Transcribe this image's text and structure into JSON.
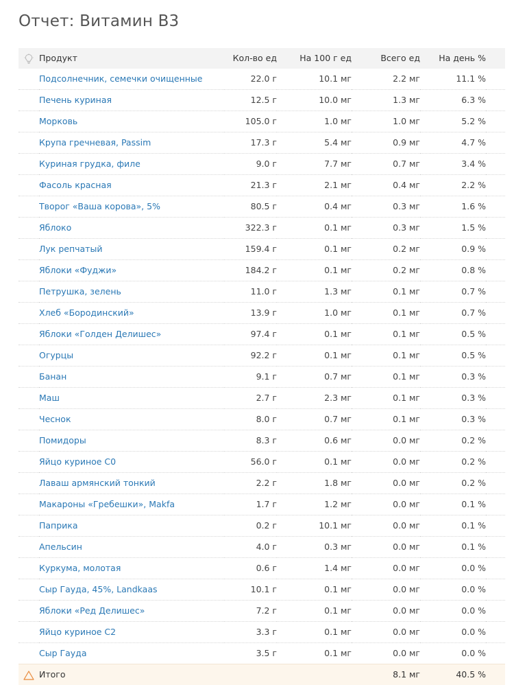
{
  "page": {
    "title": "Отчет: Витамин В3"
  },
  "table": {
    "headers": {
      "product": "Продукт",
      "qty": "Кол-во ед",
      "per100": "На 100 г ед",
      "total": "Всего ед",
      "per_day": "На день %"
    },
    "header_icon": "lightbulb-icon",
    "rows": [
      {
        "name": "Подсолнечник, семечки очищенные",
        "qty": "22.0 г",
        "per100": "10.1 мг",
        "total": "2.2 мг",
        "per_day": "11.1 %"
      },
      {
        "name": "Печень куриная",
        "qty": "12.5 г",
        "per100": "10.0 мг",
        "total": "1.3 мг",
        "per_day": "6.3 %"
      },
      {
        "name": "Морковь",
        "qty": "105.0 г",
        "per100": "1.0 мг",
        "total": "1.0 мг",
        "per_day": "5.2 %"
      },
      {
        "name": "Крупа гречневая, Passim",
        "qty": "17.3 г",
        "per100": "5.4 мг",
        "total": "0.9 мг",
        "per_day": "4.7 %"
      },
      {
        "name": "Куриная грудка, филе",
        "qty": "9.0 г",
        "per100": "7.7 мг",
        "total": "0.7 мг",
        "per_day": "3.4 %"
      },
      {
        "name": "Фасоль красная",
        "qty": "21.3 г",
        "per100": "2.1 мг",
        "total": "0.4 мг",
        "per_day": "2.2 %"
      },
      {
        "name": "Творог «Ваша корова», 5%",
        "qty": "80.5 г",
        "per100": "0.4 мг",
        "total": "0.3 мг",
        "per_day": "1.6 %"
      },
      {
        "name": "Яблоко",
        "qty": "322.3 г",
        "per100": "0.1 мг",
        "total": "0.3 мг",
        "per_day": "1.5 %"
      },
      {
        "name": "Лук репчатый",
        "qty": "159.4 г",
        "per100": "0.1 мг",
        "total": "0.2 мг",
        "per_day": "0.9 %"
      },
      {
        "name": "Яблоки «Фуджи»",
        "qty": "184.2 г",
        "per100": "0.1 мг",
        "total": "0.2 мг",
        "per_day": "0.8 %"
      },
      {
        "name": "Петрушка, зелень",
        "qty": "11.0 г",
        "per100": "1.3 мг",
        "total": "0.1 мг",
        "per_day": "0.7 %"
      },
      {
        "name": "Хлеб «Бородинский»",
        "qty": "13.9 г",
        "per100": "1.0 мг",
        "total": "0.1 мг",
        "per_day": "0.7 %"
      },
      {
        "name": "Яблоки «Голден Делишес»",
        "qty": "97.4 г",
        "per100": "0.1 мг",
        "total": "0.1 мг",
        "per_day": "0.5 %"
      },
      {
        "name": "Огурцы",
        "qty": "92.2 г",
        "per100": "0.1 мг",
        "total": "0.1 мг",
        "per_day": "0.5 %"
      },
      {
        "name": "Банан",
        "qty": "9.1 г",
        "per100": "0.7 мг",
        "total": "0.1 мг",
        "per_day": "0.3 %"
      },
      {
        "name": "Маш",
        "qty": "2.7 г",
        "per100": "2.3 мг",
        "total": "0.1 мг",
        "per_day": "0.3 %"
      },
      {
        "name": "Чеснок",
        "qty": "8.0 г",
        "per100": "0.7 мг",
        "total": "0.1 мг",
        "per_day": "0.3 %"
      },
      {
        "name": "Помидоры",
        "qty": "8.3 г",
        "per100": "0.6 мг",
        "total": "0.0 мг",
        "per_day": "0.2 %"
      },
      {
        "name": "Яйцо куриное С0",
        "qty": "56.0 г",
        "per100": "0.1 мг",
        "total": "0.0 мг",
        "per_day": "0.2 %"
      },
      {
        "name": "Лаваш армянский тонкий",
        "qty": "2.2 г",
        "per100": "1.8 мг",
        "total": "0.0 мг",
        "per_day": "0.2 %"
      },
      {
        "name": "Макароны «Гребешки», Makfa",
        "qty": "1.7 г",
        "per100": "1.2 мг",
        "total": "0.0 мг",
        "per_day": "0.1 %"
      },
      {
        "name": "Паприка",
        "qty": "0.2 г",
        "per100": "10.1 мг",
        "total": "0.0 мг",
        "per_day": "0.1 %"
      },
      {
        "name": "Апельсин",
        "qty": "4.0 г",
        "per100": "0.3 мг",
        "total": "0.0 мг",
        "per_day": "0.1 %"
      },
      {
        "name": "Куркума, молотая",
        "qty": "0.6 г",
        "per100": "1.4 мг",
        "total": "0.0 мг",
        "per_day": "0.0 %"
      },
      {
        "name": "Сыр Гауда, 45%, Landkaas",
        "qty": "10.1 г",
        "per100": "0.1 мг",
        "total": "0.0 мг",
        "per_day": "0.0 %"
      },
      {
        "name": "Яблоки «Ред Делишес»",
        "qty": "7.2 г",
        "per100": "0.1 мг",
        "total": "0.0 мг",
        "per_day": "0.0 %"
      },
      {
        "name": "Яйцо куриное С2",
        "qty": "3.3 г",
        "per100": "0.1 мг",
        "total": "0.0 мг",
        "per_day": "0.0 %"
      },
      {
        "name": "Сыр Гауда",
        "qty": "3.5 г",
        "per100": "0.1 мг",
        "total": "0.0 мг",
        "per_day": "0.0 %"
      }
    ],
    "footer": {
      "icon": "warning-icon",
      "label": "Итого",
      "total": "8.1 мг",
      "per_day": "40.5 %"
    }
  },
  "colors": {
    "link": "#2a78b5",
    "header_bg": "#f3f3f3",
    "footer_bg": "#fdf6ec",
    "warning": "#e8893a"
  }
}
